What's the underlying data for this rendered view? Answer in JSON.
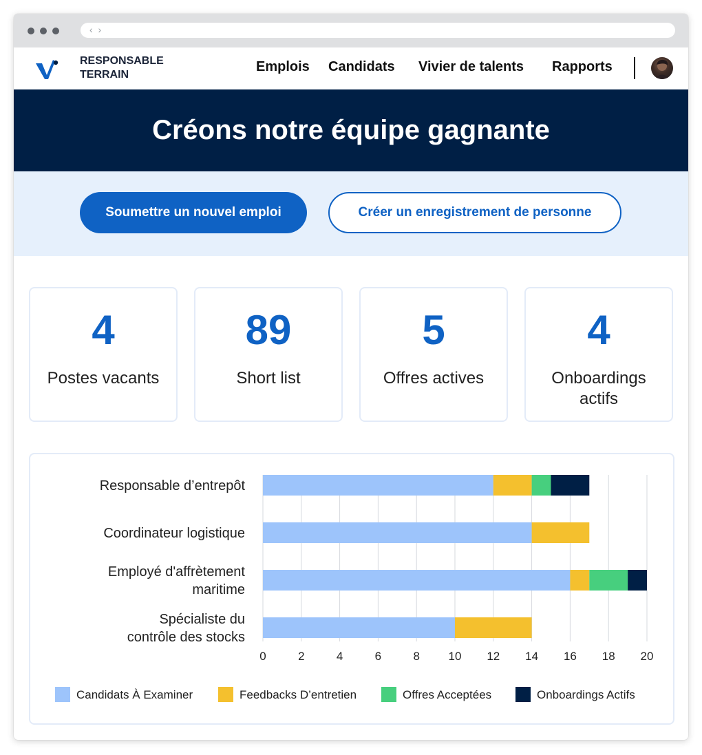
{
  "brand": {
    "line1": "RESPONSABLE",
    "line2": "TERRAIN"
  },
  "nav": {
    "items": [
      "Emplois",
      "Candidats",
      "Vivier de talents",
      "Rapports"
    ]
  },
  "hero": {
    "title": "Créons notre équipe gagnante"
  },
  "actions": {
    "primary": "Soumettre un nouvel emploi",
    "secondary": "Créer un enregistrement de personne"
  },
  "stats": [
    {
      "value": "4",
      "label": "Postes vacants"
    },
    {
      "value": "89",
      "label": "Short list"
    },
    {
      "value": "5",
      "label": "Offres actives"
    },
    {
      "value": "4",
      "label": "Onboardings actifs"
    }
  ],
  "colors": {
    "brand_blue": "#0f62c4",
    "navy": "#001f45",
    "light_bg": "#e6f0fc"
  },
  "icons": [
    "logo-icon",
    "avatar",
    "browser-nav-arrows-icon"
  ],
  "chart_data": {
    "type": "bar",
    "orientation": "horizontal",
    "stacked": true,
    "categories": [
      [
        "Responsable d’entrepôt"
      ],
      [
        "Coordinateur logistique"
      ],
      [
        "Employé d'affrètement",
        "maritime"
      ],
      [
        "Spécialiste du",
        "contrôle des stocks"
      ]
    ],
    "series": [
      {
        "name": "Candidats À Examiner",
        "color": "#9dc4fb",
        "values": [
          12,
          14,
          16,
          10
        ]
      },
      {
        "name": "Feedbacks D’entretien",
        "color": "#f4c02e",
        "values": [
          2,
          3,
          1,
          4
        ]
      },
      {
        "name": "Offres Acceptées",
        "color": "#47cf7e",
        "values": [
          1,
          0,
          2,
          0
        ]
      },
      {
        "name": "Onboardings Actifs",
        "color": "#001f45",
        "values": [
          2,
          0,
          1,
          0
        ]
      }
    ],
    "xlim": [
      0,
      20
    ],
    "xticks": [
      0,
      2,
      4,
      6,
      8,
      10,
      12,
      14,
      16,
      18,
      20
    ],
    "grid": true,
    "legend_position": "bottom"
  }
}
